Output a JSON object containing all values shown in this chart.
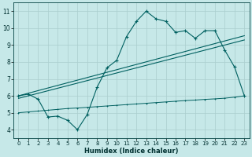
{
  "bg_color": "#c6e8e8",
  "grid_color": "#aacece",
  "line_color": "#006060",
  "x_label": "Humidex (Indice chaleur)",
  "xlim": [
    -0.5,
    23.5
  ],
  "ylim": [
    3.5,
    11.5
  ],
  "yticks": [
    4,
    5,
    6,
    7,
    8,
    9,
    10,
    11
  ],
  "xticks": [
    0,
    1,
    2,
    3,
    4,
    5,
    6,
    7,
    8,
    9,
    10,
    11,
    12,
    13,
    14,
    15,
    16,
    17,
    18,
    19,
    20,
    21,
    22,
    23
  ],
  "curve_x": [
    0,
    1,
    2,
    3,
    4,
    5,
    6,
    7,
    8,
    9,
    10,
    11,
    12,
    13,
    14,
    15,
    16,
    17,
    18,
    19,
    20,
    21,
    22,
    23
  ],
  "curve_y": [
    6.0,
    6.1,
    5.8,
    4.75,
    4.8,
    4.55,
    4.0,
    4.9,
    6.5,
    7.65,
    8.1,
    9.5,
    10.4,
    11.0,
    10.55,
    10.4,
    9.75,
    9.85,
    9.4,
    9.85,
    9.85,
    8.7,
    7.7,
    6.0
  ],
  "line1_x": [
    0,
    23
  ],
  "line1_y": [
    6.0,
    9.55
  ],
  "line2_x": [
    0,
    23
  ],
  "line2_y": [
    5.85,
    9.3
  ],
  "line3_x": [
    0,
    1,
    2,
    3,
    4,
    5,
    6,
    7,
    8,
    9,
    10,
    11,
    12,
    13,
    14,
    15,
    16,
    17,
    18,
    19,
    20,
    21,
    22,
    23
  ],
  "line3_y": [
    5.0,
    5.05,
    5.1,
    5.15,
    5.2,
    5.25,
    5.28,
    5.32,
    5.36,
    5.4,
    5.44,
    5.48,
    5.52,
    5.56,
    5.6,
    5.64,
    5.68,
    5.72,
    5.75,
    5.79,
    5.82,
    5.86,
    5.92,
    6.0
  ]
}
